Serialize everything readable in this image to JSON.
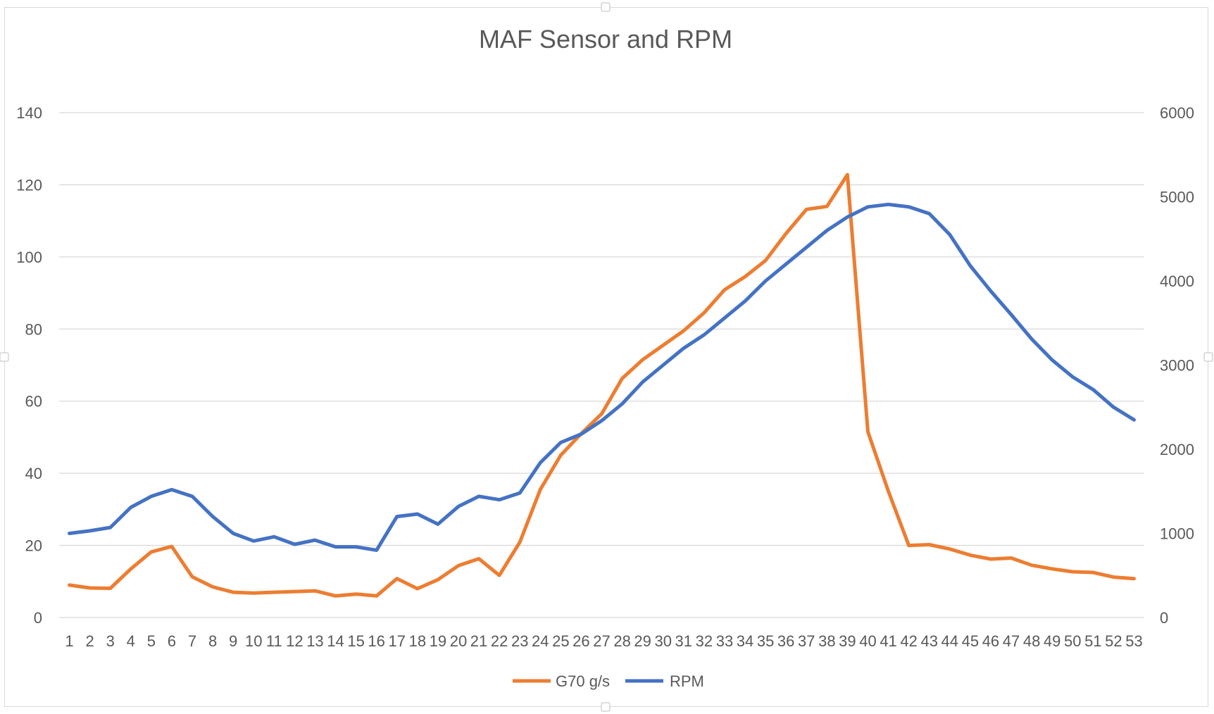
{
  "chart_data": {
    "type": "line",
    "title": "MAF Sensor and RPM",
    "xlabel": "",
    "ylabel": "",
    "y2label": "",
    "ylim": [
      0,
      140
    ],
    "y2lim": [
      0,
      6000
    ],
    "y_ticks": [
      0,
      20,
      40,
      60,
      80,
      100,
      120,
      140
    ],
    "y2_ticks": [
      0,
      1000,
      2000,
      3000,
      4000,
      5000,
      6000
    ],
    "grid": true,
    "legend_position": "bottom",
    "categories": [
      1,
      2,
      3,
      4,
      5,
      6,
      7,
      8,
      9,
      10,
      11,
      12,
      13,
      14,
      15,
      16,
      17,
      18,
      19,
      20,
      21,
      22,
      23,
      24,
      25,
      26,
      27,
      28,
      29,
      30,
      31,
      32,
      33,
      34,
      35,
      36,
      37,
      38,
      39,
      40,
      41,
      42,
      43,
      44,
      45,
      46,
      47,
      48,
      49,
      50,
      51,
      52,
      53
    ],
    "series": [
      {
        "name": "G70 g/s",
        "axis": "left",
        "color": "#ED7D31",
        "values": [
          9,
          8.2,
          8.1,
          13.5,
          18.2,
          19.7,
          11.3,
          8.5,
          7,
          6.8,
          7,
          7.2,
          7.4,
          6,
          6.5,
          6,
          10.8,
          8,
          10.5,
          14.4,
          16.3,
          11.7,
          20.9,
          35.5,
          45,
          51,
          56.5,
          66.3,
          71.5,
          75.5,
          79.5,
          84.5,
          90.9,
          94.5,
          99,
          106.5,
          113.2,
          114,
          122.8,
          51.5,
          35,
          20,
          20.2,
          19,
          17.3,
          16.2,
          16.5,
          14.5,
          13.5,
          12.7,
          12.5,
          11.2,
          10.8
        ]
      },
      {
        "name": "RPM",
        "axis": "right",
        "color": "#4472C4",
        "values": [
          1000,
          1030,
          1070,
          1310,
          1440,
          1520,
          1440,
          1200,
          1000,
          910,
          960,
          870,
          920,
          840,
          840,
          800,
          1200,
          1230,
          1110,
          1320,
          1440,
          1400,
          1480,
          1840,
          2080,
          2180,
          2340,
          2540,
          2800,
          3000,
          3200,
          3360,
          3560,
          3760,
          4000,
          4200,
          4400,
          4600,
          4760,
          4880,
          4910,
          4880,
          4800,
          4550,
          4180,
          3880,
          3600,
          3310,
          3060,
          2860,
          2710,
          2500,
          2350
        ]
      }
    ]
  }
}
